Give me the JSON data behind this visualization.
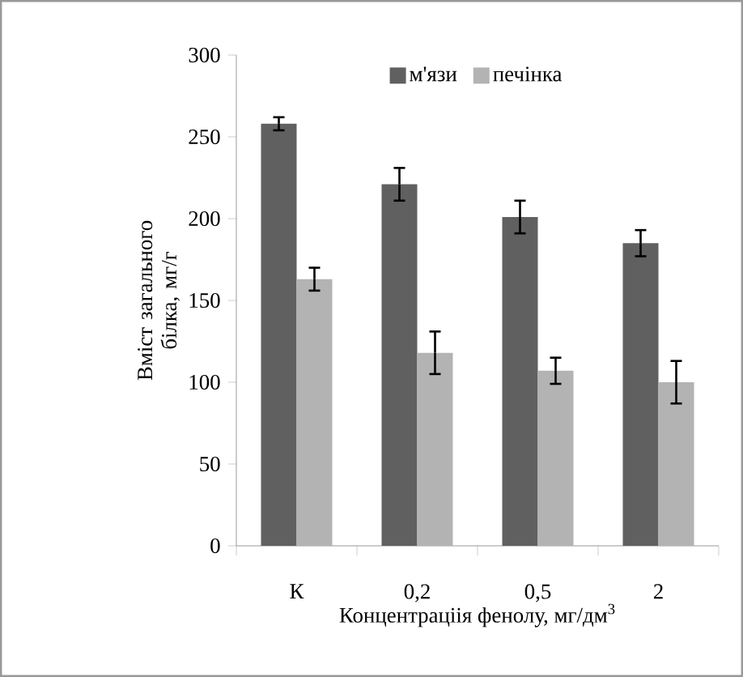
{
  "chart_data": {
    "type": "bar",
    "categories": [
      "К",
      "0,2",
      "0,5",
      "2"
    ],
    "xlabel": "Концентраціія фенолу, мг/дм$^{3}$",
    "ylabel": "Вміст загального білка, мг/г",
    "series": [
      {
        "name": "м'язи",
        "color": "#606060",
        "values": [
          258,
          221,
          201,
          185
        ],
        "errors": [
          4,
          10,
          10,
          8
        ]
      },
      {
        "name": "печінка",
        "color": "#b3b3b3",
        "values": [
          163,
          118,
          107,
          100
        ],
        "errors": [
          7,
          13,
          8,
          13
        ]
      }
    ],
    "ylim": [
      0,
      300
    ],
    "yticks": [
      0,
      50,
      100,
      150,
      200,
      250,
      300
    ],
    "legend": "top"
  }
}
